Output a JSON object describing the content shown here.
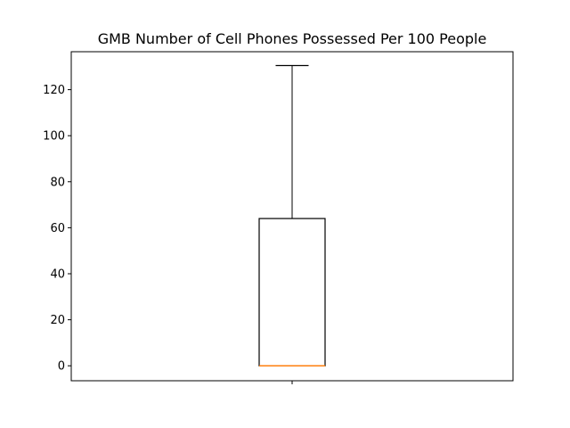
{
  "chart_data": {
    "type": "boxplot",
    "title": "GMB Number of Cell Phones Possessed Per 100 People",
    "xlabel": "",
    "ylabel": "",
    "x_tick_labels": [
      ""
    ],
    "y_ticks": [
      0,
      20,
      40,
      60,
      80,
      100,
      120
    ],
    "ylim": [
      -6.5,
      136.5
    ],
    "grid": false,
    "boxes": [
      {
        "min": 0,
        "q1": 0,
        "median": 0,
        "q3": 64,
        "max": 130.5
      }
    ],
    "colors": {
      "box": "#000000",
      "median": "#ff7f0e"
    }
  }
}
